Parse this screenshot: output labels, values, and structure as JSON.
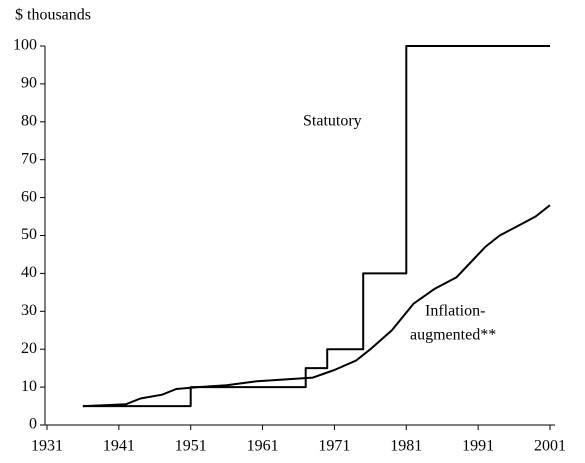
{
  "chart_data": {
    "type": "line",
    "y_axis_label": "$ thousands",
    "annotations": [
      "Statutory",
      "Inflation-",
      "augmented**"
    ],
    "xlim": [
      1931,
      2001
    ],
    "xticks": [
      1931,
      1941,
      1951,
      1961,
      1971,
      1981,
      1991,
      2001
    ],
    "ylim": [
      0,
      100
    ],
    "yticks": [
      0,
      10,
      20,
      30,
      40,
      50,
      60,
      70,
      80,
      90,
      100
    ],
    "series": [
      {
        "name": "Statutory",
        "color": "#000000",
        "x": [
          1936,
          1951,
          1951,
          1967,
          1967,
          1970,
          1970,
          1975,
          1975,
          1981,
          1981,
          2001
        ],
        "values": [
          5,
          5,
          10,
          10,
          15,
          15,
          20,
          20,
          40,
          40,
          100,
          100
        ]
      },
      {
        "name": "Inflation-augmented**",
        "color": "#000000",
        "x": [
          1936,
          1939,
          1942,
          1944,
          1947,
          1949,
          1952,
          1956,
          1960,
          1964,
          1968,
          1971,
          1974,
          1976,
          1979,
          1982,
          1985,
          1988,
          1990,
          1992,
          1994,
          1997,
          1999,
          2001
        ],
        "values": [
          5,
          5.2,
          5.5,
          7,
          8,
          9.5,
          10,
          10.5,
          11.5,
          12,
          12.5,
          14.5,
          17,
          20,
          25,
          32,
          36,
          39,
          43,
          47,
          50,
          53,
          55,
          58
        ]
      }
    ]
  }
}
